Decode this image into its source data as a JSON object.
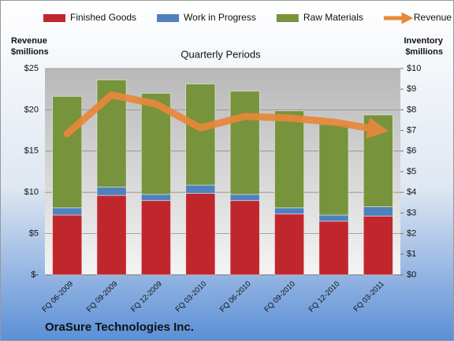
{
  "chart_data": {
    "type": "bar",
    "stacked": true,
    "title": "Quarterly Periods",
    "ylabel": [
      "Revenue",
      "$millions"
    ],
    "y2label": [
      "Inventory",
      "$millions"
    ],
    "footer": "OraSure Technologies Inc.",
    "categories": [
      "FQ 06-2009",
      "FQ 09-2009",
      "FQ 12-2009",
      "FQ 03-2010",
      "FQ 06-2010",
      "FQ 09-2010",
      "FQ 12-2010",
      "FQ 03-2011"
    ],
    "series": [
      {
        "name": "Finished Goods",
        "color": "#c0272d",
        "axis": "y2",
        "values": [
          2.9,
          3.85,
          3.6,
          3.95,
          3.6,
          2.95,
          2.6,
          2.85
        ]
      },
      {
        "name": "Work in Progress",
        "color": "#4f81bd",
        "axis": "y2",
        "values": [
          0.35,
          0.4,
          0.3,
          0.4,
          0.3,
          0.3,
          0.3,
          0.45
        ]
      },
      {
        "name": "Raw Materials",
        "color": "#77933c",
        "axis": "y2",
        "values": [
          5.4,
          5.2,
          4.9,
          4.9,
          5.0,
          4.7,
          4.4,
          4.45
        ]
      },
      {
        "name": "Revenue",
        "color": "#e8883a",
        "type": "line",
        "values": [
          17.1,
          21.8,
          20.7,
          17.8,
          19.2,
          19.0,
          18.5,
          17.6
        ]
      }
    ],
    "ylim": [
      0,
      25
    ],
    "yticks": [
      {
        "value": 0,
        "label": "$-"
      },
      {
        "value": 5,
        "label": "$5"
      },
      {
        "value": 10,
        "label": "$10"
      },
      {
        "value": 15,
        "label": "$15"
      },
      {
        "value": 20,
        "label": "$20"
      },
      {
        "value": 25,
        "label": "$25"
      }
    ],
    "y2lim": [
      0,
      10
    ],
    "y2ticks": [
      {
        "value": 0,
        "label": "$0"
      },
      {
        "value": 1,
        "label": "$1"
      },
      {
        "value": 2,
        "label": "$2"
      },
      {
        "value": 3,
        "label": "$3"
      },
      {
        "value": 4,
        "label": "$4"
      },
      {
        "value": 5,
        "label": "$5"
      },
      {
        "value": 6,
        "label": "$6"
      },
      {
        "value": 7,
        "label": "$7"
      },
      {
        "value": 8,
        "label": "$8"
      },
      {
        "value": 9,
        "label": "$9"
      },
      {
        "value": 10,
        "label": "$10"
      }
    ],
    "grid": true,
    "legend": "top"
  }
}
